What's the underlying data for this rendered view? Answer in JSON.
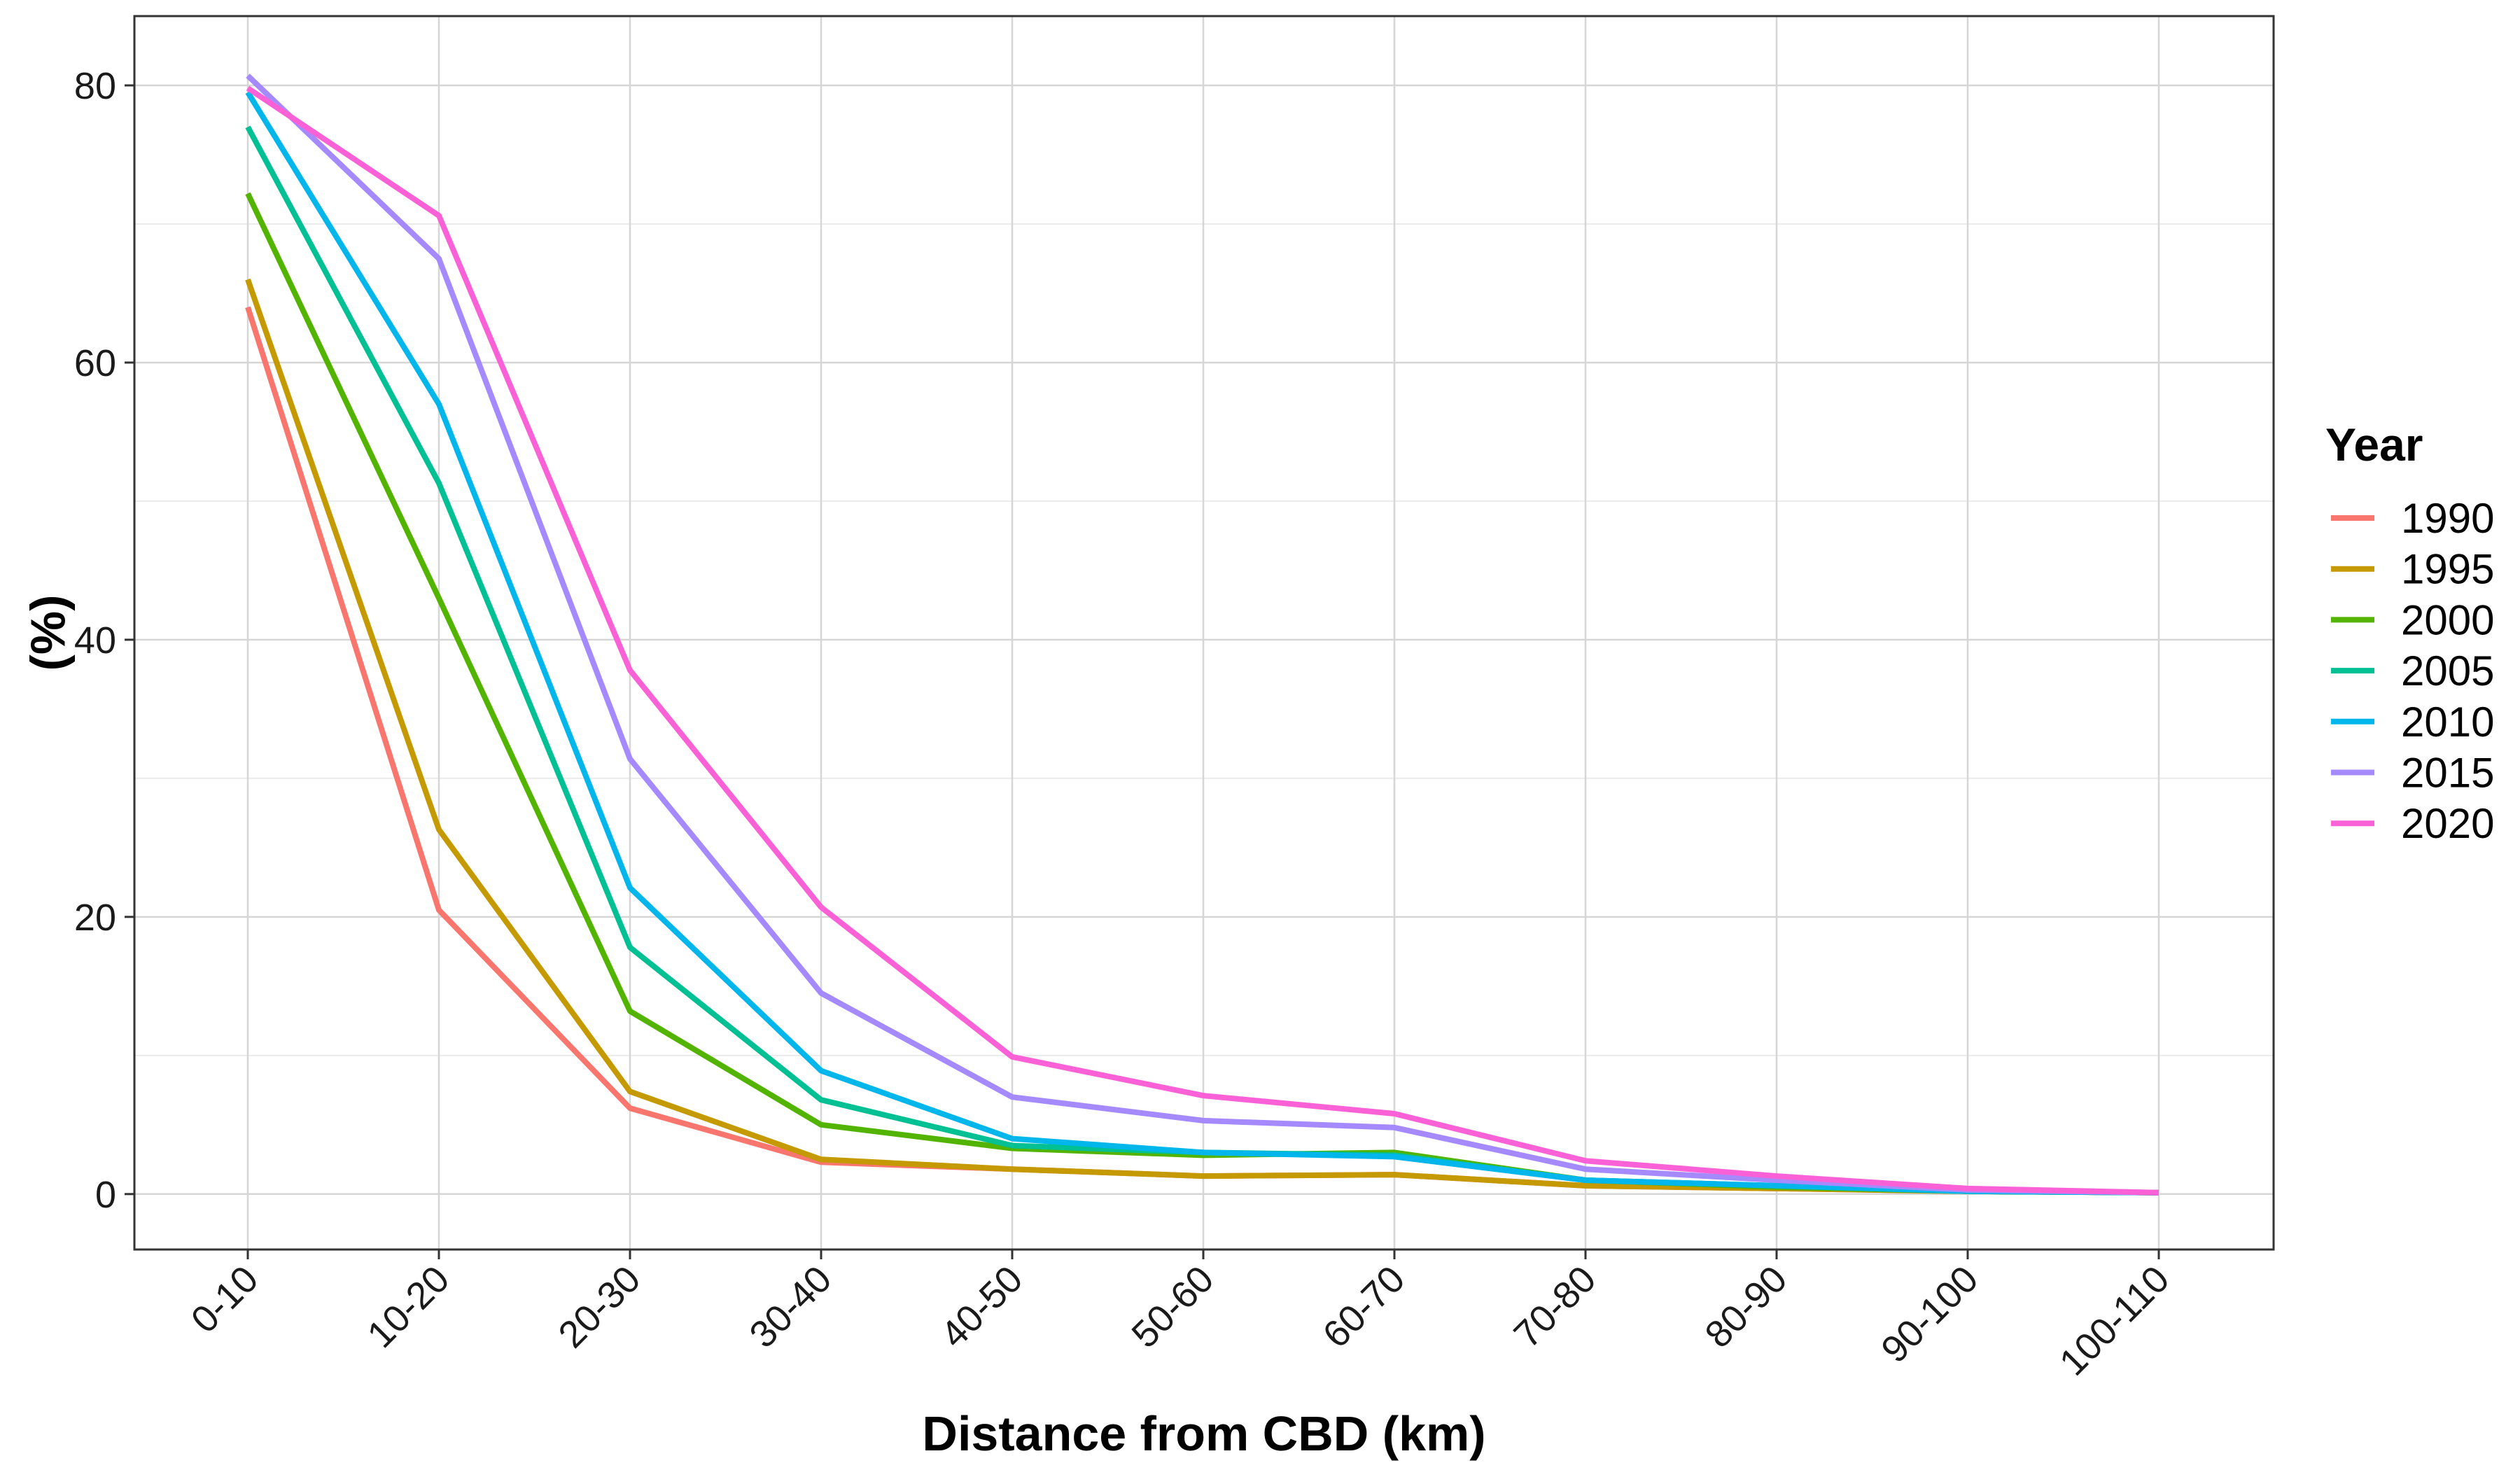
{
  "chart_data": {
    "type": "line",
    "xlabel": "Distance from CBD (km)",
    "ylabel": "(%)",
    "categories": [
      "0-10",
      "10-20",
      "20-30",
      "30-40",
      "40-50",
      "50-60",
      "60-70",
      "70-80",
      "80-90",
      "90-100",
      "100-110"
    ],
    "ylim": [
      -4,
      85
    ],
    "yticks": [
      0,
      20,
      40,
      60,
      80
    ],
    "grid": true,
    "legend": {
      "title": "Year",
      "position": "right"
    },
    "series": [
      {
        "name": "1990",
        "color": "#F8766D",
        "values": [
          64.0,
          20.5,
          6.2,
          2.3,
          1.8,
          1.3,
          1.4,
          0.6,
          0.4,
          0.2,
          0.1
        ]
      },
      {
        "name": "1995",
        "color": "#C49A00",
        "values": [
          66.0,
          26.3,
          7.4,
          2.5,
          1.8,
          1.3,
          1.4,
          0.6,
          0.4,
          0.2,
          0.1
        ]
      },
      {
        "name": "2000",
        "color": "#53B400",
        "values": [
          72.2,
          43.0,
          13.2,
          5.0,
          3.3,
          2.8,
          3.0,
          1.0,
          0.5,
          0.2,
          0.1
        ]
      },
      {
        "name": "2005",
        "color": "#00C094",
        "values": [
          77.0,
          51.3,
          17.8,
          6.8,
          3.5,
          3.0,
          2.8,
          1.0,
          0.6,
          0.2,
          0.1
        ]
      },
      {
        "name": "2010",
        "color": "#00B6EB",
        "values": [
          79.5,
          57.0,
          22.1,
          8.9,
          4.0,
          3.0,
          2.7,
          1.0,
          0.6,
          0.2,
          0.1
        ]
      },
      {
        "name": "2015",
        "color": "#A58AFF",
        "values": [
          80.7,
          67.5,
          31.4,
          14.5,
          7.0,
          5.3,
          4.8,
          1.8,
          1.0,
          0.3,
          0.1
        ]
      },
      {
        "name": "2020",
        "color": "#FB61D7",
        "values": [
          79.8,
          70.6,
          37.8,
          20.7,
          9.9,
          7.1,
          5.8,
          2.4,
          1.3,
          0.4,
          0.1
        ]
      }
    ]
  }
}
